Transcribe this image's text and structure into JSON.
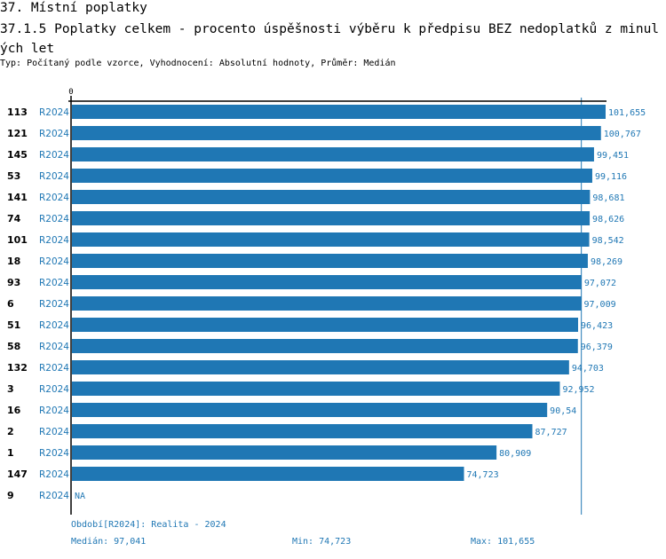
{
  "header": {
    "title": "37. Místní poplatky",
    "subtitle": "37.1.5 Poplatky celkem - procento úspěšnosti výběru k předpisu BEZ nedoplatků z minulých let",
    "info": "Typ: Počítaný podle vzorce, Vyhodnocení: Absolutní hodnoty, Průměr: Medián"
  },
  "colors": {
    "bar": "#1f77b4",
    "text": "#1f77b4"
  },
  "chart_data": {
    "type": "bar",
    "orientation": "horizontal",
    "axis_zero_label": "0",
    "xlim": [
      0,
      101.655
    ],
    "median": 97.041,
    "rows": [
      {
        "id": "113",
        "period": "R2024",
        "value": 101.655,
        "label": "101,655"
      },
      {
        "id": "121",
        "period": "R2024",
        "value": 100.767,
        "label": "100,767"
      },
      {
        "id": "145",
        "period": "R2024",
        "value": 99.451,
        "label": "99,451"
      },
      {
        "id": "53",
        "period": "R2024",
        "value": 99.116,
        "label": "99,116"
      },
      {
        "id": "141",
        "period": "R2024",
        "value": 98.681,
        "label": "98,681"
      },
      {
        "id": "74",
        "period": "R2024",
        "value": 98.626,
        "label": "98,626"
      },
      {
        "id": "101",
        "period": "R2024",
        "value": 98.542,
        "label": "98,542"
      },
      {
        "id": "18",
        "period": "R2024",
        "value": 98.269,
        "label": "98,269"
      },
      {
        "id": "93",
        "period": "R2024",
        "value": 97.072,
        "label": "97,072"
      },
      {
        "id": "6",
        "period": "R2024",
        "value": 97.009,
        "label": "97,009"
      },
      {
        "id": "51",
        "period": "R2024",
        "value": 96.423,
        "label": "96,423"
      },
      {
        "id": "58",
        "period": "R2024",
        "value": 96.379,
        "label": "96,379"
      },
      {
        "id": "132",
        "period": "R2024",
        "value": 94.703,
        "label": "94,703"
      },
      {
        "id": "3",
        "period": "R2024",
        "value": 92.952,
        "label": "92,952"
      },
      {
        "id": "16",
        "period": "R2024",
        "value": 90.54,
        "label": "90,54"
      },
      {
        "id": "2",
        "period": "R2024",
        "value": 87.727,
        "label": "87,727"
      },
      {
        "id": "1",
        "period": "R2024",
        "value": 80.909,
        "label": "80,909"
      },
      {
        "id": "147",
        "period": "R2024",
        "value": 74.723,
        "label": "74,723"
      },
      {
        "id": "9",
        "period": "R2024",
        "value": null,
        "label": "NA"
      }
    ]
  },
  "footer": {
    "period": "Období[R2024]: Realita - 2024",
    "median": "Medián: 97,041",
    "min": "Min: 74,723",
    "max": "Max: 101,655"
  }
}
